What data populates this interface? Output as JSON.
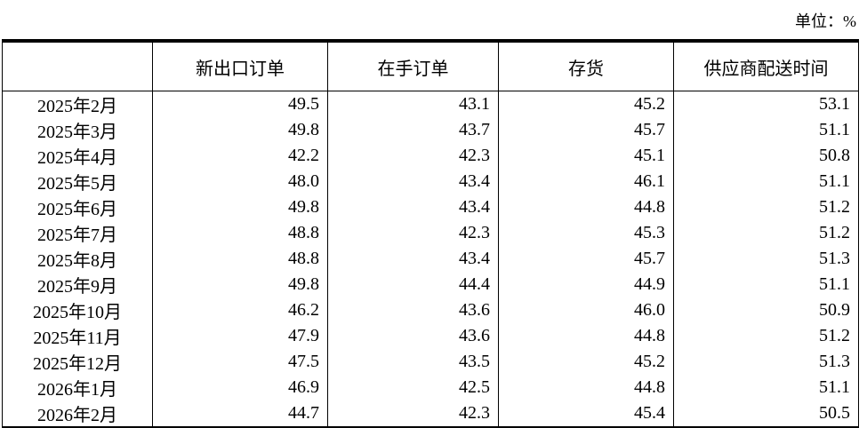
{
  "page": {
    "unit_label": "单位：%"
  },
  "table": {
    "columns": [
      "",
      "新出口订单",
      "在手订单",
      "存货",
      "供应商配送时间"
    ],
    "rows": [
      {
        "month": "2025年2月",
        "values": [
          "49.5",
          "43.1",
          "45.2",
          "53.1"
        ]
      },
      {
        "month": "2025年3月",
        "values": [
          "49.8",
          "43.7",
          "45.7",
          "51.1"
        ]
      },
      {
        "month": "2025年4月",
        "values": [
          "42.2",
          "42.3",
          "45.1",
          "50.8"
        ]
      },
      {
        "month": "2025年5月",
        "values": [
          "48.0",
          "43.4",
          "46.1",
          "51.1"
        ]
      },
      {
        "month": "2025年6月",
        "values": [
          "49.8",
          "43.4",
          "44.8",
          "51.2"
        ]
      },
      {
        "month": "2025年7月",
        "values": [
          "48.8",
          "42.3",
          "45.3",
          "51.2"
        ]
      },
      {
        "month": "2025年8月",
        "values": [
          "48.8",
          "43.4",
          "45.7",
          "51.3"
        ]
      },
      {
        "month": "2025年9月",
        "values": [
          "49.8",
          "44.4",
          "44.9",
          "51.1"
        ]
      },
      {
        "month": "2025年10月",
        "values": [
          "46.2",
          "43.6",
          "46.0",
          "50.9"
        ]
      },
      {
        "month": "2025年11月",
        "values": [
          "47.9",
          "43.6",
          "44.8",
          "51.2"
        ]
      },
      {
        "month": "2025年12月",
        "values": [
          "47.5",
          "43.5",
          "45.2",
          "51.3"
        ]
      },
      {
        "month": "2026年1月",
        "values": [
          "46.9",
          "42.5",
          "44.8",
          "51.1"
        ]
      },
      {
        "month": "2026年2月",
        "values": [
          "44.7",
          "42.3",
          "45.4",
          "50.5"
        ]
      }
    ]
  }
}
